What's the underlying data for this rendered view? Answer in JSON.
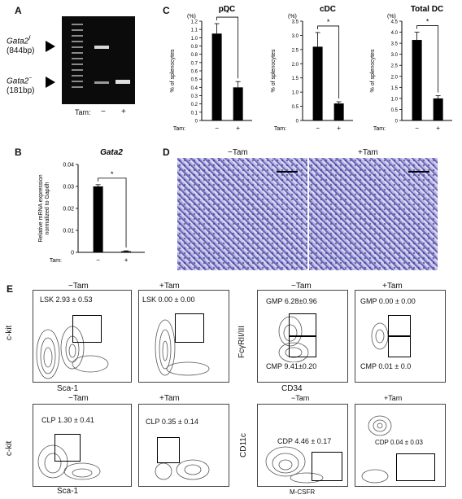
{
  "panels": {
    "A": {
      "letter": "A",
      "band_high": "Gata2",
      "band_high_sup": "f",
      "band_high_size": "(844bp)",
      "band_low": "Gata2",
      "band_low_sup": "−",
      "band_low_size": "(181bp)",
      "tam_label": "Tam:",
      "minus": "−",
      "plus": "+"
    },
    "B": {
      "letter": "B",
      "title": "Gata2",
      "ylabel_lines": [
        "Relative mRNA expression",
        "normalized to Gapdh"
      ],
      "yticks": [
        "0.04",
        "0.03",
        "0.02",
        "0.01",
        "0"
      ],
      "tam_label": "Tam:",
      "minus": "−",
      "plus": "+",
      "sig": "*"
    },
    "C": {
      "letter": "C",
      "percent_unit": "(%)",
      "ylabel": "% of splenocytes",
      "tam_label": "Tam:",
      "minus": "−",
      "plus": "+",
      "sig": "*"
    },
    "D": {
      "letter": "D",
      "left_label": "−Tam",
      "right_label": "+Tam"
    },
    "E": {
      "letter": "E",
      "minus_tam": "−Tam",
      "plus_tam": "+Tam",
      "ckit": "c-kit",
      "sca1": "Sca-1",
      "fcgr": "FcγRII/III",
      "cd34": "CD34",
      "cd11c": "CD11c",
      "mcsfr": "M-CSFR",
      "lsk_minus": "LSK 2.93 ± 0.53",
      "lsk_plus": "LSK 0.00 ± 0.00",
      "gmp_minus": "GMP 6.28±0.96",
      "cmp_minus": "CMP 9.41±0.20",
      "gmp_plus": "GMP 0.00 ± 0.00",
      "cmp_plus": "CMP  0.01 ± 0.0",
      "clp_minus": "CLP 1.30 ± 0.41",
      "clp_plus": "CLP 0.35 ± 0.14",
      "cdp_minus": "CDP 4.46 ± 0.17",
      "cdp_plus": "CDP 0.04 ± 0.03"
    }
  },
  "chart_data": [
    {
      "type": "bar",
      "title": "Gata2",
      "categories": [
        "−",
        "+"
      ],
      "values": [
        0.03,
        0.0005
      ],
      "errors": [
        0.0008,
        0.0002
      ],
      "ylim": [
        0,
        0.04
      ],
      "ylabel": "Relative mRNA expression normalized to Gapdh"
    },
    {
      "type": "bar",
      "title": "pDC",
      "categories": [
        "−",
        "+"
      ],
      "values": [
        1.05,
        0.4
      ],
      "errors": [
        0.12,
        0.07
      ],
      "ylim": [
        0,
        1.2
      ],
      "yticks": [
        "0",
        "0.1",
        "0.2",
        "0.3",
        "0.4",
        "0.5",
        "0.6",
        "0.7",
        "0.8",
        "0.9",
        "1.0",
        "1.1",
        "1.2"
      ],
      "ylabel": "% of splenocytes"
    },
    {
      "type": "bar",
      "title": "cDC",
      "categories": [
        "−",
        "+"
      ],
      "values": [
        2.6,
        0.6
      ],
      "errors": [
        0.5,
        0.06
      ],
      "ylim": [
        0,
        3.5
      ],
      "yticks": [
        "0",
        "0.5",
        "1.0",
        "1.5",
        "2.0",
        "2.5",
        "3.0",
        "3.5"
      ],
      "ylabel": "% of splenocytes"
    },
    {
      "type": "bar",
      "title": "Total DC",
      "categories": [
        "−",
        "+"
      ],
      "values": [
        3.65,
        1.0
      ],
      "errors": [
        0.35,
        0.12
      ],
      "ylim": [
        0,
        4.5
      ],
      "yticks": [
        "0",
        "0.5",
        "1.0",
        "1.5",
        "2.0",
        "2.5",
        "3.0",
        "3.5",
        "4.0",
        "4.5"
      ],
      "ylabel": "% of splenocytes"
    }
  ]
}
